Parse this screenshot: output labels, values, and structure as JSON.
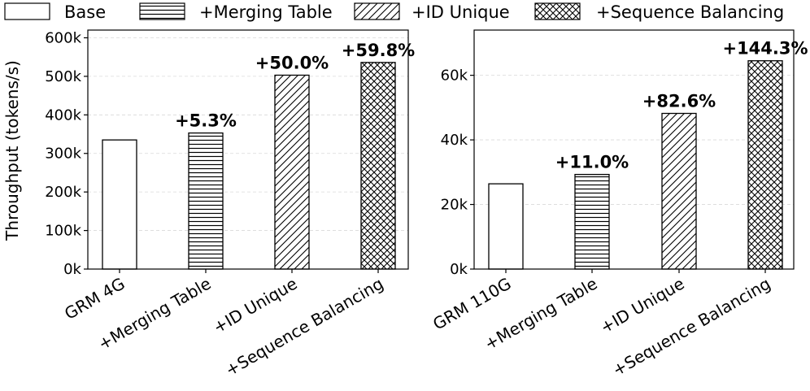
{
  "legend": [
    {
      "label": "Base",
      "pattern": "none"
    },
    {
      "label": "+Merging Table",
      "pattern": "horizontal"
    },
    {
      "label": "+ID Unique",
      "pattern": "diagonal"
    },
    {
      "label": "+Sequence Balancing",
      "pattern": "cross"
    }
  ],
  "chart_data": [
    {
      "type": "bar",
      "ylabel": "Throughput (tokens/s)",
      "categories": [
        "GRM 4G",
        "+Merging Table",
        "+ID Unique",
        "+Sequence Balancing"
      ],
      "values": [
        335000,
        353000,
        503000,
        536000
      ],
      "annotations": [
        "",
        "+5.3%",
        "+50.0%",
        "+59.8%"
      ],
      "ylim": [
        0,
        620000
      ],
      "yticks": [
        0,
        100000,
        200000,
        300000,
        400000,
        500000,
        600000
      ],
      "ytick_labels": [
        "0k",
        "100k",
        "200k",
        "300k",
        "400k",
        "500k",
        "600k"
      ],
      "grid": "horizontal dashed"
    },
    {
      "type": "bar",
      "ylabel": "",
      "categories": [
        "GRM 110G",
        "+Merging Table",
        "+ID Unique",
        "+Sequence Balancing"
      ],
      "values": [
        26400,
        29300,
        48200,
        64500
      ],
      "annotations": [
        "",
        "+11.0%",
        "+82.6%",
        "+144.3%"
      ],
      "ylim": [
        0,
        74000
      ],
      "yticks": [
        0,
        20000,
        40000,
        60000
      ],
      "ytick_labels": [
        "0k",
        "20k",
        "40k",
        "60k"
      ],
      "grid": "horizontal dashed"
    }
  ]
}
